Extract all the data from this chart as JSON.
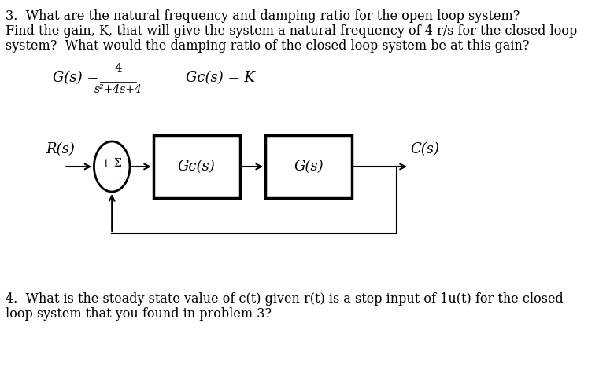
{
  "background_color": "#ffffff",
  "title_text": "3.  What are the natural frequency and damping ratio for the open loop system?",
  "line2_text": "Find the gain, K, that will give the system a natural frequency of 4 r/s for the closed loop",
  "line3_text": "system?  What would the damping ratio of the closed loop system be at this gain?",
  "gs_label": "G(s) =",
  "gs_numerator": "4",
  "gs_denominator": "s²+4s+4",
  "gc_label": "Gc(s) = K",
  "rs_label": "R(s)",
  "cs_label": "C(s)",
  "sum_label": "+ Σ",
  "minus_label": "−",
  "gc_box_label": "Gc(s)",
  "g_box_label": "G(s)",
  "question4_line1": "4.  What is the steady state value of c(t) given r(t) is a step input of 1u(t) for the closed",
  "question4_line2": "loop system that you found in problem 3?",
  "text_color": "#000000",
  "box_color": "#000000",
  "line_color": "#000000",
  "font_size_body": 11.5,
  "font_size_formula": 13,
  "font_size_box": 13,
  "font_size_diagram_label": 13
}
